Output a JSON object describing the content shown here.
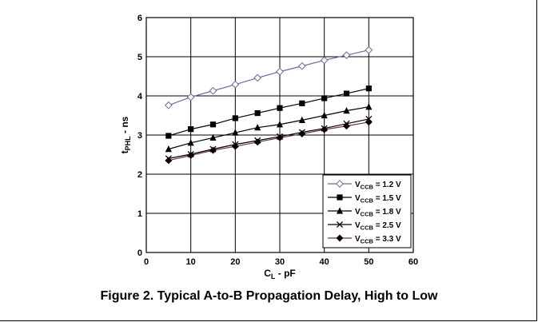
{
  "figure_caption": "Figure 2. Typical A-to-B Propagation Delay, High to Low",
  "chart_data": {
    "type": "line",
    "xlabel": {
      "main": "C",
      "sub": "L",
      "rest": " - pF"
    },
    "ylabel": {
      "main": "t",
      "sub": "PHL",
      "rest": " - ns"
    },
    "xlim": [
      0,
      60
    ],
    "ylim": [
      0,
      6
    ],
    "x_ticks": [
      0,
      10,
      20,
      30,
      40,
      50,
      60
    ],
    "y_ticks": [
      0,
      1,
      2,
      3,
      4,
      5,
      6
    ],
    "grid": true,
    "legend_position": "bottom-right",
    "x": [
      5,
      10,
      15,
      20,
      25,
      30,
      35,
      40,
      45,
      50
    ],
    "series": [
      {
        "name": {
          "main": "V",
          "sub": "CCB",
          "rest": " = 1.2 V"
        },
        "marker": "diamond-open",
        "color": "#6b6b9e",
        "values": [
          3.76,
          3.97,
          4.13,
          4.29,
          4.46,
          4.62,
          4.76,
          4.91,
          5.04,
          5.17
        ]
      },
      {
        "name": {
          "main": "V",
          "sub": "CCB",
          "rest": " = 1.5 V"
        },
        "marker": "square",
        "color": "#000000",
        "values": [
          2.98,
          3.15,
          3.27,
          3.43,
          3.56,
          3.69,
          3.81,
          3.94,
          4.06,
          4.19
        ]
      },
      {
        "name": {
          "main": "V",
          "sub": "CCB",
          "rest": " = 1.8 V"
        },
        "marker": "triangle",
        "color": "#000000",
        "values": [
          2.64,
          2.8,
          2.93,
          3.06,
          3.19,
          3.27,
          3.38,
          3.5,
          3.62,
          3.72
        ]
      },
      {
        "name": {
          "main": "V",
          "sub": "CCB",
          "rest": " = 2.5 V"
        },
        "marker": "x",
        "color": "#000000",
        "values": [
          2.4,
          2.51,
          2.64,
          2.76,
          2.86,
          2.96,
          3.07,
          3.17,
          3.29,
          3.41
        ]
      },
      {
        "name": {
          "main": "V",
          "sub": "CCB",
          "rest": " = 3.3 V"
        },
        "marker": "diamond",
        "color": "#7a3535",
        "values": [
          2.35,
          2.48,
          2.61,
          2.71,
          2.82,
          2.93,
          3.03,
          3.14,
          3.23,
          3.33
        ]
      }
    ]
  }
}
